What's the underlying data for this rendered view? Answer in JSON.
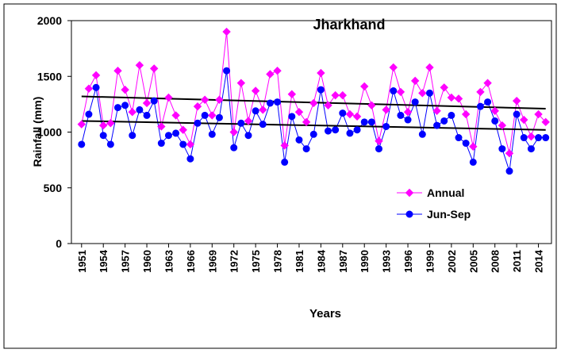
{
  "chart_data": {
    "type": "line",
    "title": "Jharkhand",
    "x_label": "Years",
    "y_label": "Rainfall (mm)",
    "x": [
      1951,
      1952,
      1953,
      1954,
      1955,
      1956,
      1957,
      1958,
      1959,
      1960,
      1961,
      1962,
      1963,
      1964,
      1965,
      1966,
      1967,
      1968,
      1969,
      1970,
      1971,
      1972,
      1973,
      1974,
      1975,
      1976,
      1977,
      1978,
      1979,
      1980,
      1981,
      1982,
      1983,
      1984,
      1985,
      1986,
      1987,
      1988,
      1989,
      1990,
      1991,
      1992,
      1993,
      1994,
      1995,
      1996,
      1997,
      1998,
      1999,
      2000,
      2001,
      2002,
      2003,
      2004,
      2005,
      2006,
      2007,
      2008,
      2009,
      2010,
      2011,
      2012,
      2013,
      2014,
      2015
    ],
    "series": [
      {
        "name": "Annual",
        "color": "#ff00ff",
        "marker": "diamond",
        "values": [
          1070,
          1390,
          1510,
          1060,
          1080,
          1550,
          1380,
          1180,
          1600,
          1260,
          1570,
          1050,
          1310,
          1150,
          1020,
          890,
          1230,
          1290,
          1150,
          1290,
          1900,
          1000,
          1440,
          1100,
          1370,
          1200,
          1520,
          1550,
          880,
          1340,
          1180,
          1090,
          1260,
          1530,
          1240,
          1330,
          1330,
          1160,
          1140,
          1410,
          1240,
          920,
          1200,
          1580,
          1360,
          1180,
          1460,
          1350,
          1580,
          1190,
          1400,
          1310,
          1300,
          1160,
          870,
          1360,
          1440,
          1190,
          1060,
          810,
          1280,
          1110,
          960,
          1160,
          1090
        ]
      },
      {
        "name": "Jun-Sep",
        "color": "#0000ff",
        "marker": "circle",
        "values": [
          890,
          1160,
          1400,
          970,
          890,
          1220,
          1240,
          970,
          1200,
          1150,
          1280,
          900,
          970,
          990,
          890,
          760,
          1080,
          1150,
          980,
          1130,
          1550,
          860,
          1080,
          970,
          1190,
          1070,
          1260,
          1270,
          730,
          1140,
          930,
          850,
          980,
          1380,
          1010,
          1020,
          1170,
          990,
          1020,
          1090,
          1090,
          850,
          1050,
          1370,
          1150,
          1110,
          1270,
          980,
          1350,
          1060,
          1100,
          1150,
          950,
          900,
          730,
          1230,
          1270,
          1100,
          850,
          650,
          1160,
          950,
          850,
          950,
          950
        ]
      }
    ],
    "trend_lines": [
      {
        "color": "#000000",
        "values": [
          1320,
          1210
        ]
      },
      {
        "color": "#000000",
        "values": [
          1100,
          1020
        ]
      }
    ],
    "xlim": [
      1949.6,
      2015.8
    ],
    "xticks": [
      1951,
      1954,
      1957,
      1960,
      1963,
      1966,
      1969,
      1972,
      1975,
      1978,
      1981,
      1984,
      1987,
      1990,
      1993,
      1996,
      1999,
      2002,
      2005,
      2008,
      2011,
      2014
    ],
    "ylim": [
      0,
      2000
    ],
    "yticks": [
      0,
      500,
      1000,
      1500,
      2000
    ],
    "grid": false,
    "legend_position": "right"
  }
}
